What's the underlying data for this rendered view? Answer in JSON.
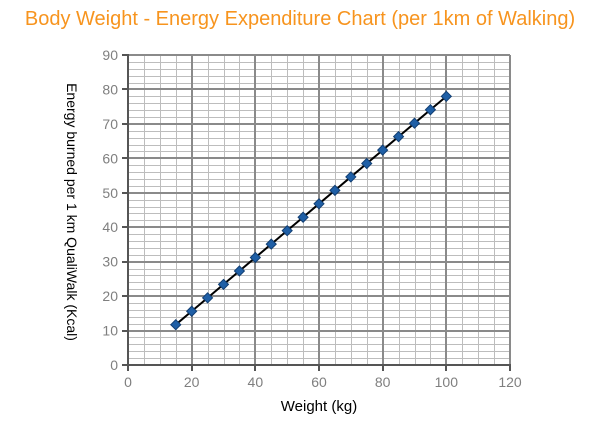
{
  "title": {
    "text": "Body Weight - Energy Expenditure Chart (per 1km of Walking)",
    "color": "#F7941E"
  },
  "chart_data": {
    "type": "line",
    "title": "Body Weight - Energy Expenditure Chart (per 1km of Walking)",
    "x": [
      15,
      20,
      25,
      30,
      35,
      40,
      45,
      50,
      55,
      60,
      65,
      70,
      75,
      80,
      85,
      90,
      95,
      100
    ],
    "y": [
      11.7,
      15.6,
      19.5,
      23.4,
      27.3,
      31.2,
      35.1,
      39.0,
      42.9,
      46.8,
      50.7,
      54.6,
      58.5,
      62.4,
      66.3,
      70.2,
      74.1,
      78.0
    ],
    "xlabel": "Weight (kg)",
    "ylabel": "Energy burned per 1 km QualiWalk (Kcal)",
    "xlim": [
      0,
      120
    ],
    "ylim": [
      0,
      90
    ],
    "x_ticks": [
      0,
      20,
      40,
      60,
      80,
      100,
      120
    ],
    "y_ticks": [
      0,
      10,
      20,
      30,
      40,
      50,
      60,
      70,
      80,
      90
    ],
    "x_minor_step": 5,
    "y_minor_step": 2,
    "grid": "major-and-minor",
    "legend": "none",
    "marker": "diamond",
    "colors": {
      "line": "#000000",
      "marker_fill": "#1F5FA6",
      "marker_edge": "#123F73",
      "grid_minor": "#bdbdbd",
      "grid_major": "#8a8a8a",
      "axis": "#555555",
      "tick_label": "#7f7f7f"
    }
  }
}
